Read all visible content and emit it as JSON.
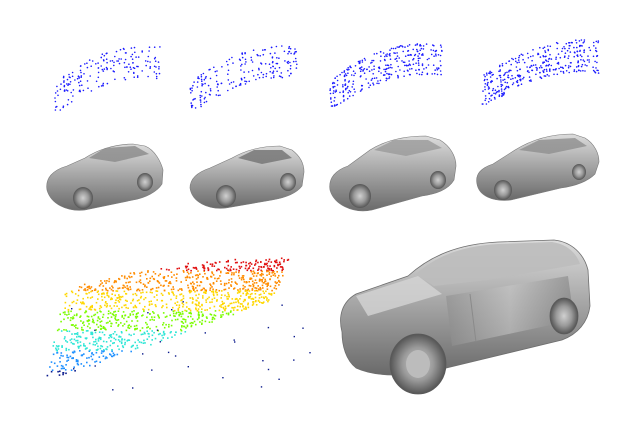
{
  "figure": {
    "kind": "3d car reconstruction comparison",
    "rows": [
      {
        "name": "sparse-point-clouds",
        "count": 4,
        "point_color": "#1a1aff"
      },
      {
        "name": "reconstructed-meshes",
        "count": 4,
        "mesh_color": "#a9a9a9"
      },
      {
        "name": "detail-pair",
        "items": [
          "colored-point-cloud",
          "large-mesh"
        ]
      }
    ],
    "colormap": [
      "#0a1a8c",
      "#1e90ff",
      "#2ee6d6",
      "#7cfc00",
      "#ffd700",
      "#ff8c00",
      "#e01010"
    ],
    "colors": {
      "background": "#ffffff",
      "mesh_dark": "#5a5a5a",
      "mesh_light": "#e6e6e6"
    }
  }
}
